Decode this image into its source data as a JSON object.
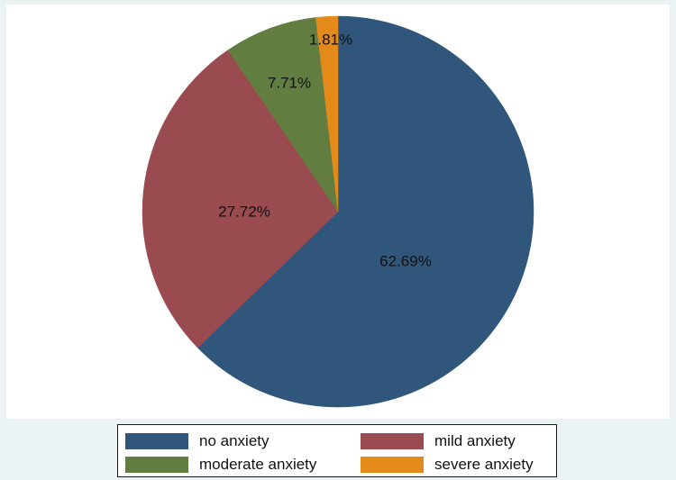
{
  "chart_data": {
    "type": "pie",
    "title": "",
    "slices": [
      {
        "name": "no anxiety",
        "value": 62.69,
        "label": "62.69%",
        "color": "#30577b"
      },
      {
        "name": "mild anxiety",
        "value": 27.72,
        "label": "27.72%",
        "color": "#994b4f"
      },
      {
        "name": "moderate anxiety",
        "value": 7.71,
        "label": "7.71%",
        "color": "#617d3f"
      },
      {
        "name": "severe anxiety",
        "value": 1.81,
        "label": "1.81%",
        "color": "#e38a1b"
      }
    ],
    "start_angle": "12 o'clock",
    "direction": "clockwise",
    "legend": {
      "position": "bottom",
      "columns": 2
    }
  },
  "colors": {
    "outer_background": "#eaf2f3",
    "plot_background": "#ffffff"
  }
}
